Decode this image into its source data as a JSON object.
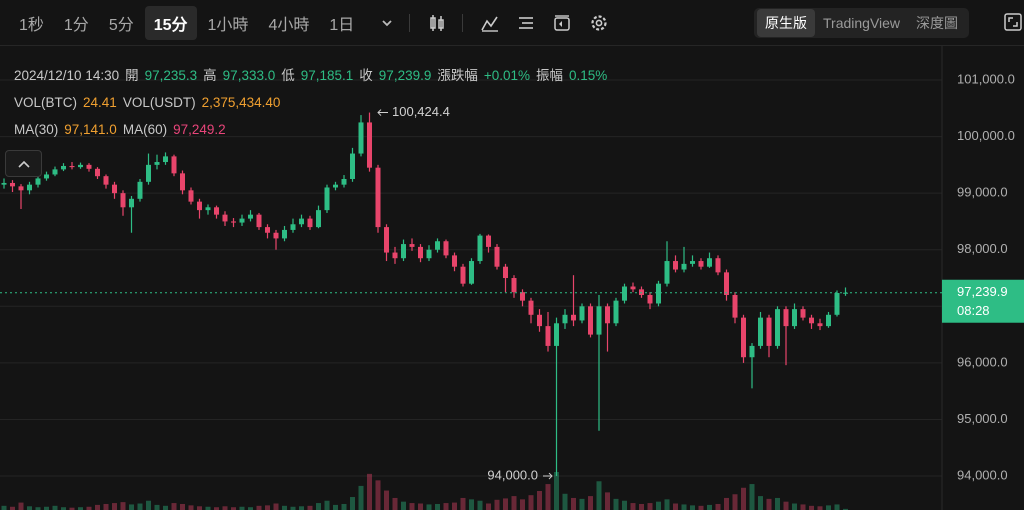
{
  "toolbar": {
    "intervals": [
      {
        "label": "1秒"
      },
      {
        "label": "1分"
      },
      {
        "label": "5分"
      },
      {
        "label": "15分",
        "active": true
      },
      {
        "label": "1小時"
      },
      {
        "label": "4小時"
      },
      {
        "label": "1日"
      }
    ],
    "views": [
      {
        "label": "原生版",
        "active": true
      },
      {
        "label": "TradingView"
      },
      {
        "label": "深度圖"
      }
    ]
  },
  "chart_data": {
    "type": "candlestick",
    "up_color": "#2ebd85",
    "down_color": "#e8456b",
    "legend": {
      "time": "2024/12/10 14:30",
      "ohlc": [
        {
          "label": "開",
          "value": "97,235.3"
        },
        {
          "label": "高",
          "value": "97,333.0"
        },
        {
          "label": "低",
          "value": "97,185.1"
        },
        {
          "label": "收",
          "value": "97,239.9"
        },
        {
          "label": "漲跌幅",
          "value": "+0.01%"
        },
        {
          "label": "振幅",
          "value": "0.15%"
        }
      ],
      "volume": [
        {
          "label": "VOL(BTC)",
          "value": "24.41",
          "color": "#f0a030"
        },
        {
          "label": "VOL(USDT)",
          "value": "2,375,434.40",
          "color": "#f0a030"
        }
      ],
      "ma": [
        {
          "label": "MA(30)",
          "value": "97,141.0",
          "color": "#f0a030"
        },
        {
          "label": "MA(60)",
          "value": "97,249.2",
          "color": "#e8457a"
        }
      ]
    },
    "ylim": [
      93400,
      101530
    ],
    "yticks": [
      {
        "value": 94000,
        "label": "94,000.0"
      },
      {
        "value": 95000,
        "label": "95,000.0"
      },
      {
        "value": 96000,
        "label": "96,000.0"
      },
      {
        "value": 97000,
        "label": "97,000.0"
      },
      {
        "value": 98000,
        "label": "98,000.0"
      },
      {
        "value": 99000,
        "label": "99,000.0"
      },
      {
        "value": 100000,
        "label": "100,000.0"
      },
      {
        "value": 101000,
        "label": "101,000.0"
      }
    ],
    "grid": true,
    "high_marker": {
      "value": 100424.4,
      "label": "100,424.4"
    },
    "low_marker": {
      "value": 94000,
      "label": "94,000.0"
    },
    "last_price": {
      "value": 97239.9,
      "label": "97,239.9"
    },
    "countdown": "08:28",
    "ohlc": [
      [
        99150,
        99260,
        99080,
        99180
      ],
      [
        99180,
        99230,
        99020,
        99120
      ],
      [
        99120,
        99160,
        98720,
        99050
      ],
      [
        99050,
        99200,
        98980,
        99150
      ],
      [
        99150,
        99300,
        99100,
        99260
      ],
      [
        99260,
        99380,
        99220,
        99330
      ],
      [
        99330,
        99470,
        99300,
        99420
      ],
      [
        99420,
        99530,
        99390,
        99480
      ],
      [
        99480,
        99550,
        99420,
        99460
      ],
      [
        99460,
        99540,
        99430,
        99500
      ],
      [
        99500,
        99530,
        99380,
        99430
      ],
      [
        99430,
        99460,
        99250,
        99300
      ],
      [
        99300,
        99330,
        99080,
        99150
      ],
      [
        99150,
        99200,
        98900,
        99000
      ],
      [
        99000,
        99050,
        98600,
        98750
      ],
      [
        98750,
        98950,
        98300,
        98900
      ],
      [
        98900,
        99250,
        98850,
        99200
      ],
      [
        99200,
        99700,
        99150,
        99500
      ],
      [
        99500,
        99680,
        99420,
        99550
      ],
      [
        99550,
        99720,
        99500,
        99650
      ],
      [
        99650,
        99680,
        99300,
        99350
      ],
      [
        99350,
        99400,
        98980,
        99050
      ],
      [
        99050,
        99100,
        98800,
        98850
      ],
      [
        98850,
        98900,
        98550,
        98700
      ],
      [
        98700,
        98800,
        98620,
        98750
      ],
      [
        98750,
        98780,
        98550,
        98620
      ],
      [
        98620,
        98680,
        98420,
        98500
      ],
      [
        98500,
        98560,
        98400,
        98480
      ],
      [
        98480,
        98620,
        98420,
        98550
      ],
      [
        98550,
        98700,
        98500,
        98620
      ],
      [
        98620,
        98650,
        98350,
        98400
      ],
      [
        98400,
        98450,
        98200,
        98300
      ],
      [
        98300,
        98350,
        98000,
        98200
      ],
      [
        98200,
        98420,
        98150,
        98350
      ],
      [
        98350,
        98550,
        98300,
        98450
      ],
      [
        98450,
        98620,
        98400,
        98550
      ],
      [
        98550,
        98600,
        98350,
        98400
      ],
      [
        98400,
        98780,
        98380,
        98700
      ],
      [
        98700,
        99150,
        98650,
        99100
      ],
      [
        99100,
        99200,
        99050,
        99150
      ],
      [
        99150,
        99320,
        99100,
        99250
      ],
      [
        99250,
        99800,
        99200,
        99700
      ],
      [
        99700,
        100380,
        99650,
        100250
      ],
      [
        100250,
        100424.4,
        99380,
        99450
      ],
      [
        99450,
        99500,
        98300,
        98400
      ],
      [
        98400,
        98450,
        97800,
        97950
      ],
      [
        97950,
        98050,
        97750,
        97850
      ],
      [
        97850,
        98180,
        97800,
        98100
      ],
      [
        98100,
        98200,
        97980,
        98050
      ],
      [
        98050,
        98100,
        97780,
        97850
      ],
      [
        97850,
        98080,
        97800,
        98000
      ],
      [
        98000,
        98200,
        97950,
        98150
      ],
      [
        98150,
        98180,
        97850,
        97900
      ],
      [
        97900,
        97950,
        97620,
        97700
      ],
      [
        97700,
        97750,
        97350,
        97400
      ],
      [
        97400,
        97850,
        97380,
        97800
      ],
      [
        97800,
        98280,
        97750,
        98250
      ],
      [
        98250,
        98270,
        97950,
        98050
      ],
      [
        98050,
        98100,
        97650,
        97700
      ],
      [
        97700,
        97750,
        97250,
        97500
      ],
      [
        97500,
        97550,
        97150,
        97250
      ],
      [
        97250,
        97300,
        97000,
        97100
      ],
      [
        97100,
        97150,
        96700,
        96850
      ],
      [
        96850,
        96950,
        96550,
        96650
      ],
      [
        96650,
        96900,
        96200,
        96300
      ],
      [
        96300,
        96800,
        94000,
        96700
      ],
      [
        96700,
        96950,
        96600,
        96850
      ],
      [
        96850,
        97550,
        96650,
        96750
      ],
      [
        96750,
        97050,
        96700,
        97000
      ],
      [
        97000,
        97050,
        96450,
        96500
      ],
      [
        96500,
        97200,
        94800,
        97000
      ],
      [
        97000,
        97050,
        96200,
        96700
      ],
      [
        96700,
        97150,
        96650,
        97100
      ],
      [
        97100,
        97400,
        97050,
        97350
      ],
      [
        97350,
        97420,
        97250,
        97300
      ],
      [
        97300,
        97350,
        97150,
        97200
      ],
      [
        97200,
        97250,
        96950,
        97050
      ],
      [
        97050,
        97450,
        97000,
        97400
      ],
      [
        97400,
        98150,
        97350,
        97800
      ],
      [
        97800,
        97900,
        97600,
        97650
      ],
      [
        97650,
        98050,
        97600,
        97750
      ],
      [
        97750,
        97900,
        97700,
        97800
      ],
      [
        97800,
        97850,
        97650,
        97700
      ],
      [
        97700,
        97950,
        97680,
        97850
      ],
      [
        97850,
        97900,
        97550,
        97600
      ],
      [
        97600,
        97650,
        97100,
        97200
      ],
      [
        97200,
        97250,
        96700,
        96800
      ],
      [
        96800,
        96850,
        96000,
        96100
      ],
      [
        96100,
        96350,
        95550,
        96300
      ],
      [
        96300,
        96900,
        96250,
        96800
      ],
      [
        96800,
        96850,
        96100,
        96300
      ],
      [
        96300,
        97000,
        96250,
        96950
      ],
      [
        96950,
        97000,
        95960,
        96650
      ],
      [
        96650,
        97050,
        96600,
        96950
      ],
      [
        96950,
        97000,
        96750,
        96800
      ],
      [
        96800,
        96850,
        96600,
        96700
      ],
      [
        96700,
        96780,
        96580,
        96650
      ],
      [
        96650,
        96900,
        96620,
        96850
      ],
      [
        96850,
        97280,
        96820,
        97235.3
      ],
      [
        97235.3,
        97333.0,
        97185.1,
        97239.9
      ]
    ],
    "volume": [
      90,
      70,
      160,
      80,
      60,
      70,
      90,
      60,
      50,
      60,
      70,
      110,
      130,
      150,
      170,
      120,
      140,
      200,
      110,
      90,
      150,
      130,
      100,
      80,
      70,
      60,
      80,
      60,
      70,
      60,
      90,
      100,
      140,
      90,
      70,
      80,
      90,
      150,
      200,
      110,
      130,
      280,
      520,
      780,
      640,
      420,
      260,
      180,
      150,
      140,
      120,
      130,
      150,
      160,
      260,
      230,
      200,
      140,
      220,
      250,
      300,
      230,
      320,
      410,
      560,
      820,
      350,
      260,
      240,
      300,
      620,
      380,
      240,
      200,
      150,
      130,
      150,
      180,
      230,
      140,
      120,
      100,
      90,
      110,
      130,
      260,
      340,
      480,
      560,
      300,
      240,
      260,
      180,
      140,
      120,
      90,
      80,
      100,
      120,
      24.41
    ]
  }
}
